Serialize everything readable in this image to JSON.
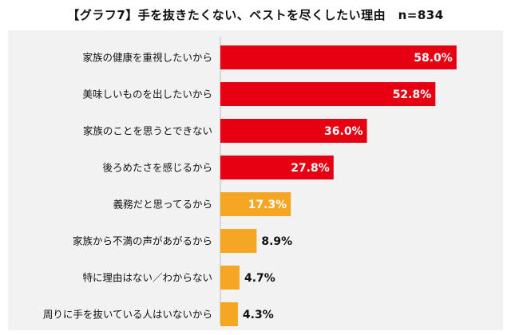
{
  "chart_data": {
    "type": "bar",
    "orientation": "horizontal",
    "title": "【グラフ7】手を抜きたくない、ベストを尽くしたい理由　n=834",
    "unit": "%",
    "categories": [
      "家族の健康を重視したいから",
      "美味しいものを出したいから",
      "家族のことを思うとできない",
      "後ろめたさを感じるから",
      "義務だと思ってるから",
      "家族から不満の声があがるから",
      "特に理由はない／わからない",
      "周りに手を抜いている人はいないから"
    ],
    "values": [
      58.0,
      52.8,
      36.0,
      27.8,
      17.3,
      8.9,
      4.7,
      4.3
    ],
    "value_labels": [
      "58.0%",
      "52.8%",
      "36.0%",
      "27.8%",
      "17.3%",
      "8.9%",
      "4.7%",
      "4.3%"
    ],
    "bar_colors": [
      "#e60012",
      "#e60012",
      "#e60012",
      "#e60012",
      "#f5a623",
      "#f5a623",
      "#f5a623",
      "#f5a623"
    ],
    "xlim": [
      0,
      100
    ],
    "grid": false,
    "legend": "none"
  }
}
